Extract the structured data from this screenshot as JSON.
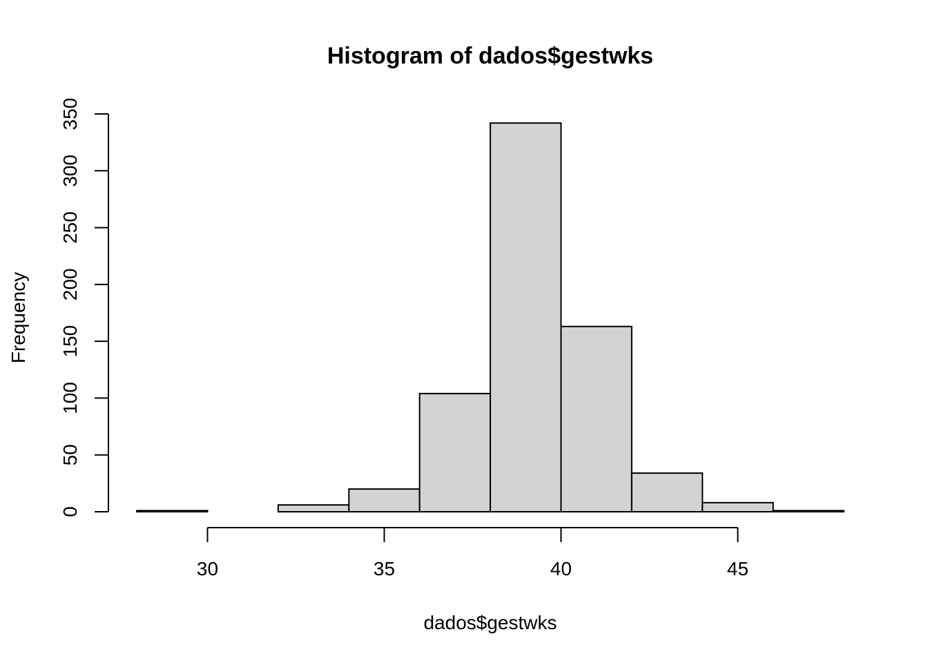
{
  "chart_data": {
    "type": "bar",
    "title": "Histogram of dados$gestwks",
    "xlabel": "dados$gestwks",
    "ylabel": "Frequency",
    "bins": [
      {
        "start": 28,
        "end": 30,
        "count": 1
      },
      {
        "start": 30,
        "end": 32,
        "count": 0
      },
      {
        "start": 32,
        "end": 34,
        "count": 6
      },
      {
        "start": 34,
        "end": 36,
        "count": 20
      },
      {
        "start": 36,
        "end": 38,
        "count": 104
      },
      {
        "start": 38,
        "end": 40,
        "count": 342
      },
      {
        "start": 40,
        "end": 42,
        "count": 163
      },
      {
        "start": 42,
        "end": 44,
        "count": 34
      },
      {
        "start": 44,
        "end": 46,
        "count": 8
      },
      {
        "start": 46,
        "end": 48,
        "count": 1
      }
    ],
    "x_ticks": [
      30,
      35,
      40,
      45
    ],
    "y_ticks": [
      0,
      50,
      100,
      150,
      200,
      250,
      300,
      350
    ],
    "xlim": [
      28,
      48
    ],
    "ylim": [
      0,
      350
    ],
    "bar_color": "#d3d3d3",
    "grid": false,
    "legend": "none"
  }
}
